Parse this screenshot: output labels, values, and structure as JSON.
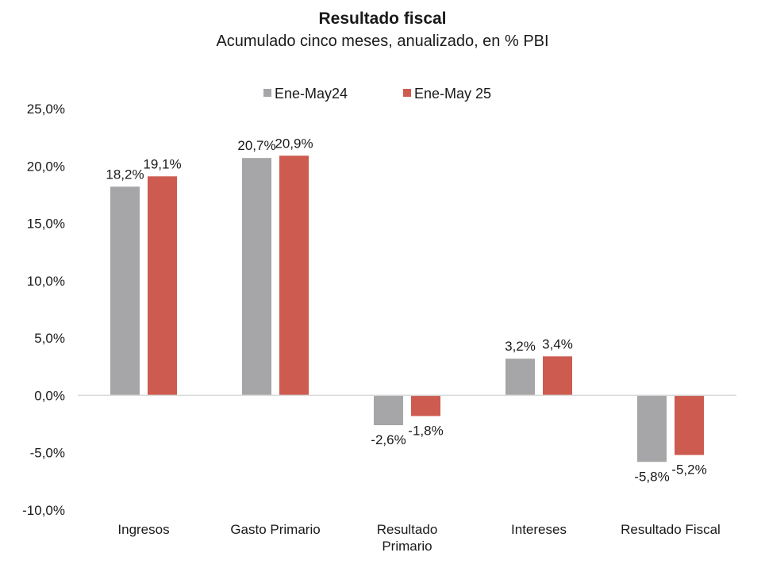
{
  "chart_data": {
    "type": "bar",
    "title": "Resultado fiscal",
    "subtitle": "Acumulado cinco meses, anualizado, en % PBI",
    "categories": [
      "Ingresos",
      "Gasto Primario",
      "Resultado Primario",
      "Intereses",
      "Resultado Fiscal"
    ],
    "category_lines": [
      [
        "Ingresos"
      ],
      [
        "Gasto Primario"
      ],
      [
        "Resultado",
        "Primario"
      ],
      [
        "Intereses"
      ],
      [
        "Resultado Fiscal"
      ]
    ],
    "series": [
      {
        "name": "Ene-May24",
        "color": "#a6a5a7",
        "values": [
          18.2,
          20.7,
          -2.6,
          3.2,
          -5.8
        ],
        "labels": [
          "18,2%",
          "20,7%",
          "-2,6%",
          "3,2%",
          "-5,8%"
        ]
      },
      {
        "name": "Ene-May 25",
        "color": "#cd5b4f",
        "values": [
          19.1,
          20.9,
          -1.8,
          3.4,
          -5.2
        ],
        "labels": [
          "19,1%",
          "20,9%",
          "-1,8%",
          "3,4%",
          "-5,2%"
        ]
      }
    ],
    "ylim": [
      -10,
      25
    ],
    "yticks": [
      25,
      20,
      15,
      10,
      5,
      0,
      -5,
      -10
    ],
    "ytick_labels": [
      "25,0%",
      "20,0%",
      "15,0%",
      "10,0%",
      "5,0%",
      "0,0%",
      "-5,0%",
      "-10,0%"
    ],
    "legend_position": "top-center",
    "grid": false
  }
}
